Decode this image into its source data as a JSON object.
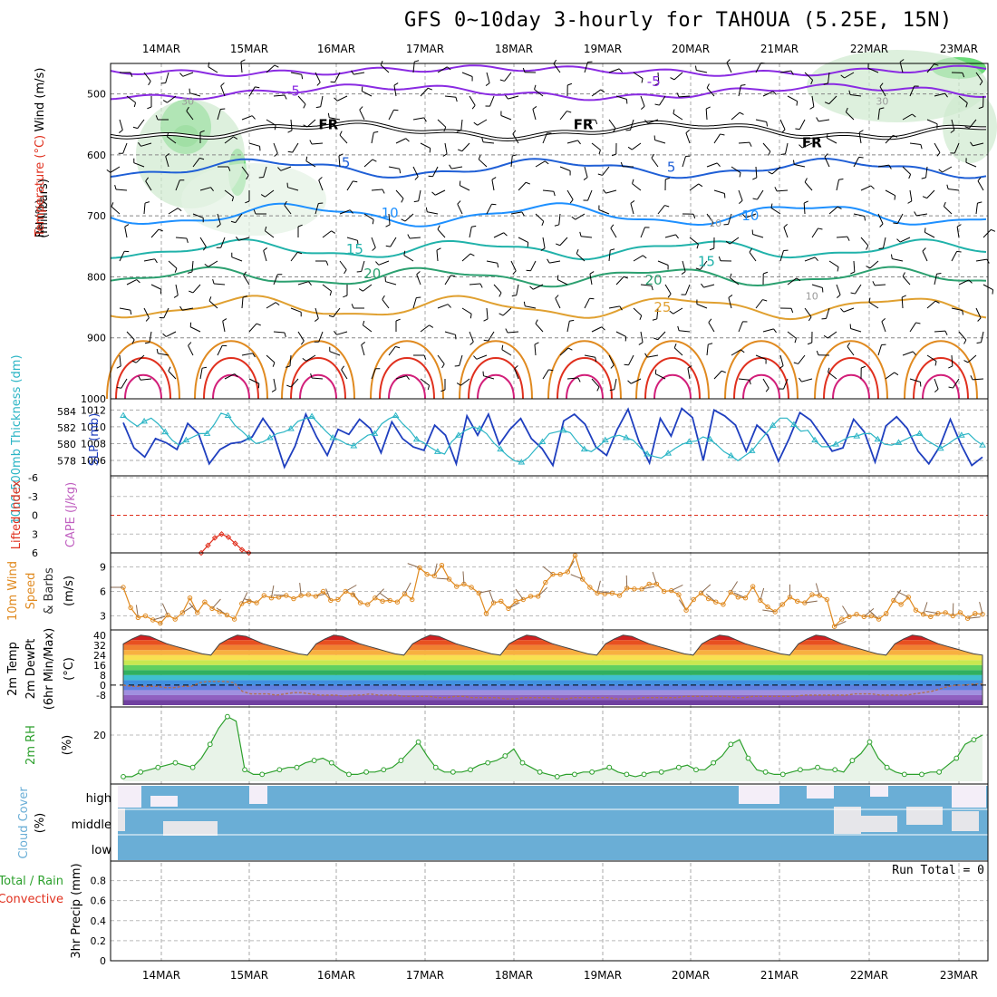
{
  "title": "GFS 0~10day 3-hourly for TAHOUA (5.25E, 15N)",
  "dates": [
    "14MAR",
    "15MAR",
    "16MAR",
    "17MAR",
    "18MAR",
    "19MAR",
    "20MAR",
    "21MAR",
    "22MAR",
    "23MAR"
  ],
  "colors": {
    "wind": "#000000",
    "temperature": "#e0301e",
    "rh": "#2ca02c",
    "slp": "#1f3fbf",
    "thickness": "#2bb5c5",
    "lifted": "#e0301e",
    "cape": "#c060c0",
    "wind10": "#e08a20",
    "cloud": "#6aaed6",
    "precip_total": "#2ca02c",
    "precip_conv": "#e0301e"
  },
  "panel_labels": {
    "upper": {
      "rh": "RH (%)",
      "temperature": "Temperature (°C)",
      "wind": "Wind (m/s)",
      "units": "(millibars)"
    },
    "slp": {
      "thickness": "1000-500mb Thickness (dm)",
      "slp": "SLP (mb)"
    },
    "cape": {
      "lifted": "Lifted Index",
      "cape": "CAPE (J/kg)"
    },
    "wind10": {
      "line1": "10m Wind",
      "line2": "Speed",
      "line3": "& Barbs",
      "units": "(m/s)"
    },
    "temp2m": {
      "line1": "2m Temp",
      "line2": "2m DewPt",
      "line3": "(6hr Min/Max)",
      "units": "(°C)"
    },
    "rh2m": {
      "line1": "2m RH",
      "units": "(%)"
    },
    "cloud": {
      "line1": "Cloud Cover",
      "units": "(%)",
      "levels": [
        "high",
        "middle",
        "low"
      ]
    },
    "precip": {
      "line1": "Total / Rain",
      "line2": "Convective",
      "line3": "3hr Precip (mm)",
      "run_total": "Run Total = 0"
    }
  },
  "chart_data": [
    {
      "type": "contour",
      "panel": "upper-air",
      "y_ticks": [
        "500",
        "600",
        "700",
        "800",
        "900",
        "1000"
      ],
      "ylim": [
        1000,
        450
      ],
      "contour_labels": [
        {
          "text": "-5",
          "date_index": 1.5,
          "mb": 495
        },
        {
          "text": "-5",
          "date_index": 5.6,
          "mb": 480
        },
        {
          "text": "FR",
          "date_index": 1.9,
          "mb": 550
        },
        {
          "text": "FR",
          "date_index": 4.8,
          "mb": 550
        },
        {
          "text": "FR",
          "date_index": 7.4,
          "mb": 580
        },
        {
          "text": "5",
          "date_index": 2.1,
          "mb": 613
        },
        {
          "text": "5",
          "date_index": 5.8,
          "mb": 620
        },
        {
          "text": "10",
          "date_index": 2.6,
          "mb": 695
        },
        {
          "text": "10",
          "date_index": 6.7,
          "mb": 700
        },
        {
          "text": "15",
          "date_index": 2.2,
          "mb": 755
        },
        {
          "text": "15",
          "date_index": 6.2,
          "mb": 775
        },
        {
          "text": "20",
          "date_index": 2.4,
          "mb": 795
        },
        {
          "text": "20",
          "date_index": 5.6,
          "mb": 805
        },
        {
          "text": "25",
          "date_index": 5.7,
          "mb": 850
        },
        {
          "text": "30",
          "date_index": 0.3,
          "mb": 510
        },
        {
          "text": "30",
          "date_index": 8.2,
          "mb": 510
        },
        {
          "text": "10",
          "date_index": 6.3,
          "mb": 710
        },
        {
          "text": "10",
          "date_index": 7.4,
          "mb": 830
        }
      ]
    },
    {
      "type": "line",
      "panel": "slp-thickness",
      "y_ticks_left": [
        "584",
        "582",
        "580",
        "578"
      ],
      "y_ticks_right": [
        "1012",
        "1010",
        "1008",
        "1006"
      ],
      "series": [
        {
          "name": "SLP (mb)",
          "values": [
            1010.5,
            1007.5,
            1006.4,
            1008.6,
            1008.1,
            1007.3,
            1010.4,
            1009.2,
            1005.6,
            1007.3,
            1008.0,
            1008.2,
            1008.8,
            1011.0,
            1009.2,
            1005.2,
            1007.7,
            1011.5,
            1008.8,
            1006.6,
            1009.7,
            1009.1,
            1010.9,
            1009.8,
            1006.9,
            1010.6,
            1008.6,
            1007.6,
            1007.2,
            1010.2,
            1009.0,
            1005.6,
            1011.3,
            1009.0,
            1011.5,
            1007.9,
            1009.7,
            1011.0,
            1008.6,
            1007.4,
            1005.4,
            1010.7,
            1011.5,
            1010.3,
            1007.6,
            1006.6,
            1009.7,
            1012.1,
            1008.3,
            1005.7,
            1011.0,
            1008.9,
            1012.2,
            1011.1,
            1006.0,
            1012.0,
            1011.3,
            1010.2,
            1007.1,
            1010.2,
            1009.0,
            1005.9,
            1008.6,
            1011.7,
            1010.8,
            1009.0,
            1007.1,
            1007.5,
            1010.9,
            1009.4,
            1005.8,
            1010.1,
            1011.2,
            1009.8,
            1007.1,
            1005.6,
            1007.6,
            1010.9,
            1007.9,
            1005.4,
            1006.4
          ]
        },
        {
          "name": "1000-500mb Thickness (dm)",
          "values": [
            583.5,
            582.8,
            582.2,
            582.8,
            583.2,
            582.5,
            581.5,
            580.5,
            579.9,
            580.5,
            580.9,
            581.3,
            581.3,
            582.4,
            583.8,
            583.5,
            582.3,
            581.6,
            580.8,
            580.1,
            580.3,
            580.8,
            581.3,
            581.5,
            581.9,
            582.8,
            583.1,
            583.4,
            582.5,
            581.6,
            580.8,
            580.5,
            580.0,
            579.8,
            580.5,
            581.1,
            581.3,
            582.5,
            583.1,
            583.5,
            582.5,
            581.7,
            580.6,
            580.2,
            579.6,
            579.1,
            578.8,
            580.3,
            581.1,
            581.7,
            582.1,
            581.9,
            581.3,
            580.2,
            579.4,
            578.6,
            578.0,
            577.8,
            578.4,
            579.4,
            580.3,
            581.3,
            581.5,
            581.7,
            581.4,
            580.3,
            579.4,
            579.1,
            579.7,
            580.5,
            580.9,
            581.1,
            580.8,
            580.5,
            579.6,
            578.8,
            578.5,
            578.3,
            578.9,
            579.5,
            580.0,
            580.3,
            580.4,
            580.9,
            580.6,
            579.9,
            579.1,
            578.6,
            578.0,
            578.6,
            579.2,
            580.3,
            581.3,
            582.3,
            583.2,
            583.2,
            582.4,
            581.6,
            581.7,
            580.5,
            579.7,
            579.7,
            580.0,
            580.5,
            580.9,
            581.0,
            581.3,
            581.3,
            580.6,
            580.0,
            579.9,
            580.2,
            580.6,
            581.0,
            581.3,
            580.5,
            580.0,
            579.5,
            580.0,
            580.6,
            581.1,
            581.3,
            580.5,
            579.9
          ]
        }
      ]
    },
    {
      "type": "line",
      "panel": "cape-lifted",
      "y_ticks": [
        "-6",
        "-3",
        "0",
        "3",
        "6"
      ],
      "series": [
        {
          "name": "Lifted Index",
          "values": [
            6.0,
            4.8,
            3.6,
            3.0,
            3.5,
            4.5,
            5.5,
            6.0
          ]
        }
      ]
    },
    {
      "type": "line",
      "panel": "wind10",
      "y_ticks": [
        "9",
        "6",
        "3"
      ],
      "ylim": [
        1.5,
        10.5
      ],
      "series": [
        {
          "name": "10m Wind Speed",
          "values": [
            6.5,
            4.0,
            2.8,
            3.0,
            2.5,
            2.1,
            3.1,
            2.6,
            3.4,
            5.2,
            3.4,
            4.7,
            3.9,
            3.5,
            3.1,
            2.6,
            4.5,
            4.8,
            4.6,
            5.5,
            5.2,
            5.3,
            5.5,
            5.1,
            5.5,
            5.6,
            5.4,
            6.0,
            4.9,
            5.0,
            6.0,
            5.6,
            4.6,
            4.4,
            5.2,
            4.8,
            4.9,
            4.7,
            5.7,
            5.0,
            8.9,
            8.1,
            7.9,
            9.2,
            7.5,
            6.6,
            6.9,
            6.5,
            5.8,
            3.3,
            4.6,
            4.8,
            3.9,
            4.8,
            5.0,
            5.4,
            5.4,
            7.1,
            8.1,
            8.1,
            8.4,
            10.4,
            7.5,
            6.5,
            5.8,
            5.7,
            5.8,
            5.5,
            6.4,
            6.3,
            6.3,
            6.9,
            6.9,
            6.0,
            6.1,
            5.6,
            3.7,
            5.0,
            5.8,
            5.1,
            4.7,
            4.4,
            5.9,
            5.3,
            5.2,
            6.6,
            4.9,
            4.1,
            3.5,
            4.4,
            5.3,
            4.8,
            4.6,
            5.6,
            5.5,
            5.0,
            1.7,
            2.6,
            2.9,
            3.2,
            2.9,
            3.0,
            2.6,
            3.3,
            4.9,
            4.4,
            5.3,
            3.7,
            3.2,
            2.9,
            3.3,
            3.4,
            3.0,
            3.4,
            2.7,
            3.3,
            3.2
          ]
        }
      ]
    },
    {
      "type": "area",
      "panel": "temp2m",
      "y_ticks": [
        "40",
        "32",
        "24",
        "16",
        "8",
        "0",
        "-8"
      ],
      "ylim": [
        -16,
        42
      ],
      "series": [
        {
          "name": "2m Temp",
          "values": [
            33,
            37,
            40,
            39,
            36,
            33,
            31,
            29,
            27,
            25,
            24,
            33,
            37,
            40,
            39,
            36,
            33,
            31,
            29,
            27,
            25,
            24,
            33,
            37,
            40,
            39,
            36,
            33,
            31,
            29,
            27,
            25,
            24,
            33,
            37,
            40,
            39,
            36,
            33,
            31,
            29,
            27,
            25,
            24,
            33,
            37,
            40,
            39,
            36,
            33,
            31,
            29,
            27,
            25,
            24,
            33,
            37,
            40,
            39,
            36,
            33,
            31,
            29,
            27,
            25,
            24,
            33,
            37,
            40,
            39,
            36,
            33,
            31,
            29,
            27,
            25,
            24,
            33,
            37,
            40,
            39,
            36,
            33,
            31,
            29,
            27,
            25,
            24,
            33,
            37,
            40,
            39,
            36,
            33,
            31,
            29,
            27,
            25,
            24
          ]
        },
        {
          "name": "2m DewPt",
          "values": [
            0,
            -1,
            -1,
            -1,
            -1,
            -2,
            -2,
            -1,
            -1,
            2,
            3,
            3,
            3,
            2,
            -5,
            -7,
            -7,
            -7,
            -8,
            -7,
            -6,
            -6,
            -7,
            -8,
            -8,
            -8,
            -9,
            -8,
            -8,
            -7,
            -8,
            -8,
            -8,
            -9,
            -9,
            -9,
            -9,
            -10,
            -10,
            -9,
            -9,
            -10,
            -10,
            -10,
            -10,
            -11,
            -11,
            -10,
            -10,
            -10,
            -10,
            -11,
            -11,
            -10,
            -10,
            -10,
            -10,
            -10,
            -11,
            -11,
            -11,
            -10,
            -10,
            -10,
            -10,
            -10,
            -9,
            -9,
            -9,
            -9,
            -9,
            -9,
            -10,
            -10,
            -9,
            -9,
            -9,
            -9,
            -9,
            -9,
            -8,
            -8,
            -8,
            -8,
            -8,
            -8,
            -7,
            -7,
            -7,
            -8,
            -8,
            -8,
            -8,
            -7,
            -6,
            -5,
            -3,
            -1,
            0,
            0,
            1,
            1
          ]
        }
      ]
    },
    {
      "type": "area",
      "panel": "rh2m",
      "y_ticks": [
        "20"
      ],
      "ylim": [
        0,
        31
      ],
      "series": [
        {
          "name": "2m RH",
          "values": [
            2,
            2,
            4,
            5,
            6,
            7,
            8,
            7,
            6,
            10,
            16,
            23,
            28,
            26,
            5,
            3,
            3,
            4,
            5,
            6,
            6,
            8,
            9,
            10,
            8,
            5,
            3,
            3,
            4,
            4,
            5,
            6,
            9,
            13,
            17,
            11,
            6,
            4,
            4,
            4,
            5,
            7,
            8,
            9,
            11,
            14,
            8,
            6,
            4,
            3,
            2,
            3,
            3,
            4,
            4,
            5,
            6,
            4,
            3,
            2,
            3,
            4,
            4,
            5,
            6,
            7,
            5,
            5,
            8,
            11,
            16,
            18,
            10,
            5,
            4,
            3,
            3,
            4,
            5,
            5,
            6,
            5,
            5,
            4,
            9,
            12,
            17,
            10,
            6,
            4,
            3,
            3,
            3,
            4,
            4,
            7,
            10,
            16,
            18,
            20
          ]
        }
      ]
    },
    {
      "type": "bar",
      "panel": "cloud",
      "levels": [
        "high",
        "middle",
        "low"
      ]
    },
    {
      "type": "bar",
      "panel": "precip",
      "y_ticks": [
        "0.8",
        "0.6",
        "0.4",
        "0.2",
        "0"
      ],
      "ylim": [
        0,
        0.95
      ],
      "series": [
        {
          "name": "Total / Rain",
          "values": []
        },
        {
          "name": "Convective",
          "values": []
        }
      ]
    }
  ]
}
